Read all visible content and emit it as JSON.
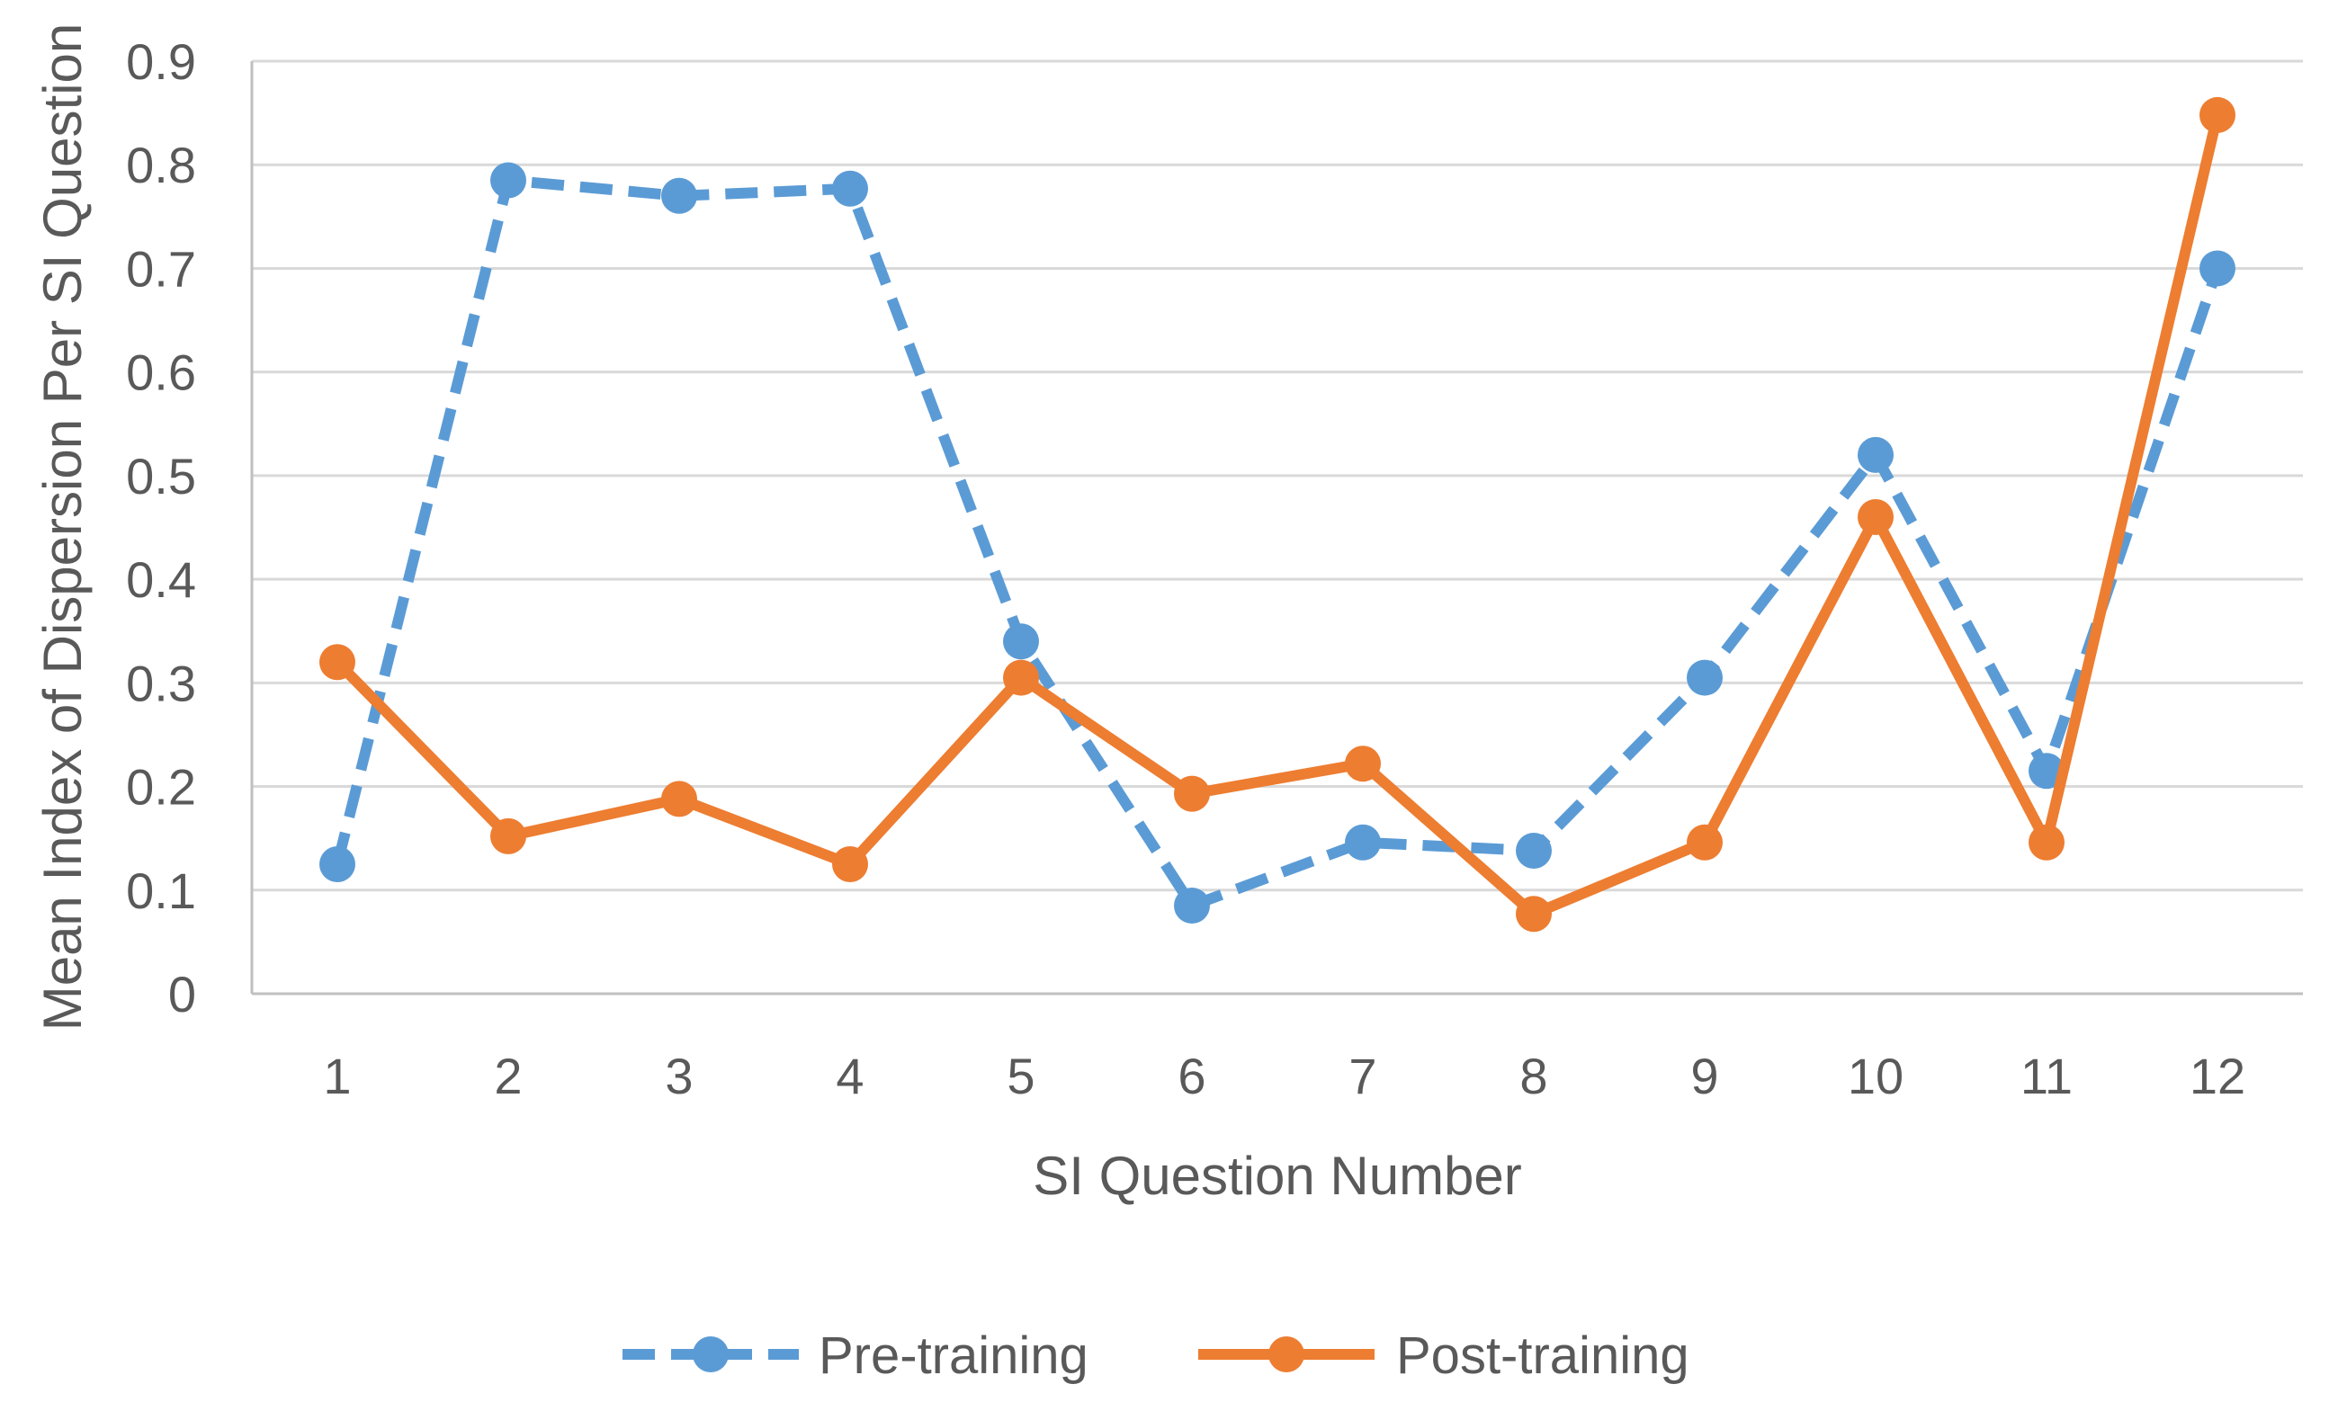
{
  "chart_data": {
    "type": "line",
    "title": "",
    "xlabel": "SI Question Number",
    "ylabel": "Mean Index of Dispersion Per SI Question",
    "categories": [
      "1",
      "2",
      "3",
      "4",
      "5",
      "6",
      "7",
      "8",
      "9",
      "10",
      "11",
      "12"
    ],
    "y_ticks": [
      "0",
      "0.1",
      "0.2",
      "0.3",
      "0.4",
      "0.5",
      "0.6",
      "0.7",
      "0.8",
      "0.9"
    ],
    "ylim": [
      0,
      0.9
    ],
    "grid": "horizontal",
    "legend_position": "bottom",
    "series": [
      {
        "name": "Pre-training",
        "color": "#5B9BD5",
        "line_style": "dashed",
        "marker": "circle",
        "values": [
          0.125,
          0.785,
          0.77,
          0.777,
          0.34,
          0.085,
          0.146,
          0.138,
          0.305,
          0.52,
          0.215,
          0.7
        ]
      },
      {
        "name": "Post-training",
        "color": "#ED7D31",
        "line_style": "solid",
        "marker": "circle",
        "values": [
          0.32,
          0.152,
          0.188,
          0.125,
          0.305,
          0.193,
          0.222,
          0.077,
          0.146,
          0.46,
          0.146,
          0.848
        ]
      }
    ]
  }
}
